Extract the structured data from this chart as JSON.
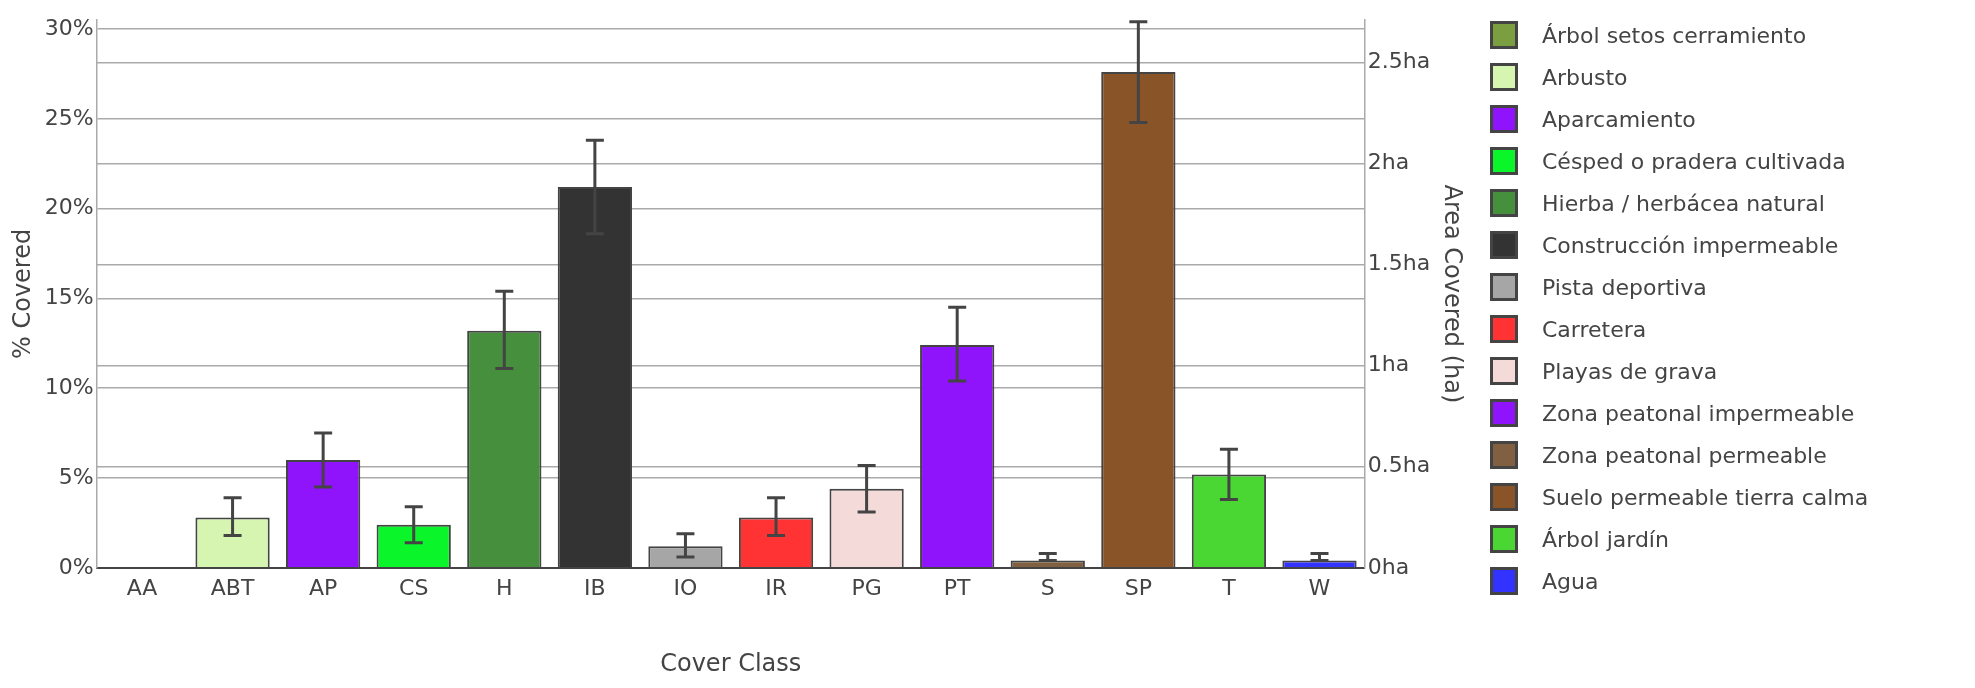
{
  "chart_data": {
    "type": "bar",
    "xlabel": "Cover Class",
    "ylabel": "% Covered",
    "y2label": "Area Covered (ha)",
    "categories": [
      "AA",
      "ABT",
      "AP",
      "CS",
      "H",
      "IB",
      "IO",
      "IR",
      "PG",
      "PT",
      "S",
      "SP",
      "T",
      "W"
    ],
    "ylim": [
      0,
      30.5
    ],
    "yticks": [
      {
        "value": 0,
        "label": "0%"
      },
      {
        "value": 5,
        "label": "5%"
      },
      {
        "value": 10,
        "label": "10%"
      },
      {
        "value": 15,
        "label": "15%"
      },
      {
        "value": 20,
        "label": "20%"
      },
      {
        "value": 25,
        "label": "25%"
      },
      {
        "value": 30,
        "label": "30%"
      }
    ],
    "y2lim": [
      0,
      2.71
    ],
    "y2ticks": [
      {
        "value": 0,
        "label": "0ha"
      },
      {
        "value": 0.5,
        "label": "0.5ha"
      },
      {
        "value": 1,
        "label": "1ha"
      },
      {
        "value": 1.5,
        "label": "1.5ha"
      },
      {
        "value": 2,
        "label": "2ha"
      },
      {
        "value": 2.5,
        "label": "2.5ha"
      }
    ],
    "grid": "y",
    "legend": "right",
    "series": [
      {
        "name": "Árbol setos cerramiento",
        "color": "#7a9e40",
        "values": [
          0.05,
          null,
          null,
          null,
          null,
          null,
          null,
          null,
          null,
          null,
          null,
          null,
          null,
          null
        ]
      },
      {
        "name": "Arbusto",
        "color": "#d5f5b0",
        "values": [
          null,
          2.8,
          null,
          null,
          null,
          null,
          null,
          null,
          null,
          null,
          null,
          null,
          null,
          null
        ],
        "errors": [
          null,
          [
            1.8,
            3.9
          ],
          null,
          null,
          null,
          null,
          null,
          null,
          null,
          null,
          null,
          null,
          null,
          null
        ]
      },
      {
        "name": "Aparcamiento",
        "color": "#8f14fc",
        "values": [
          null,
          null,
          6.0,
          null,
          null,
          null,
          null,
          null,
          null,
          null,
          null,
          null,
          null,
          null
        ],
        "errors": [
          null,
          null,
          [
            4.5,
            7.5
          ],
          null,
          null,
          null,
          null,
          null,
          null,
          null,
          null,
          null,
          null,
          null
        ]
      },
      {
        "name": "Césped o pradera cultivada",
        "color": "#0af52a",
        "values": [
          null,
          null,
          null,
          2.4,
          null,
          null,
          null,
          null,
          null,
          null,
          null,
          null,
          null,
          null
        ],
        "errors": [
          null,
          null,
          null,
          [
            1.4,
            3.4
          ],
          null,
          null,
          null,
          null,
          null,
          null,
          null,
          null,
          null,
          null
        ]
      },
      {
        "name": "Hierba / herbácea natural",
        "color": "#468f3c",
        "values": [
          null,
          null,
          null,
          null,
          13.2,
          null,
          null,
          null,
          null,
          null,
          null,
          null,
          null,
          null
        ],
        "errors": [
          null,
          null,
          null,
          null,
          [
            11.1,
            15.4
          ],
          null,
          null,
          null,
          null,
          null,
          null,
          null,
          null,
          null
        ]
      },
      {
        "name": "Construcción impermeable",
        "color": "#333333",
        "values": [
          null,
          null,
          null,
          null,
          null,
          21.2,
          null,
          null,
          null,
          null,
          null,
          null,
          null,
          null
        ],
        "errors": [
          null,
          null,
          null,
          null,
          null,
          [
            18.6,
            23.8
          ],
          null,
          null,
          null,
          null,
          null,
          null,
          null,
          null
        ]
      },
      {
        "name": "Pista deportiva",
        "color": "#a6a6a6",
        "values": [
          null,
          null,
          null,
          null,
          null,
          null,
          1.2,
          null,
          null,
          null,
          null,
          null,
          null,
          null
        ],
        "errors": [
          null,
          null,
          null,
          null,
          null,
          null,
          [
            0.6,
            1.9
          ],
          null,
          null,
          null,
          null,
          null,
          null,
          null
        ]
      },
      {
        "name": "Carretera",
        "color": "#ff3333",
        "values": [
          null,
          null,
          null,
          null,
          null,
          null,
          null,
          2.8,
          null,
          null,
          null,
          null,
          null,
          null
        ],
        "errors": [
          null,
          null,
          null,
          null,
          null,
          null,
          null,
          [
            1.8,
            3.9
          ],
          null,
          null,
          null,
          null,
          null,
          null
        ]
      },
      {
        "name": "Playas de grava",
        "color": "#f5dada",
        "values": [
          null,
          null,
          null,
          null,
          null,
          null,
          null,
          null,
          4.4,
          null,
          null,
          null,
          null,
          null
        ],
        "errors": [
          null,
          null,
          null,
          null,
          null,
          null,
          null,
          null,
          [
            3.1,
            5.7
          ],
          null,
          null,
          null,
          null,
          null
        ]
      },
      {
        "name": "Zona peatonal impermeable",
        "color": "#8f14fc",
        "values": [
          null,
          null,
          null,
          null,
          null,
          null,
          null,
          null,
          null,
          12.4,
          null,
          null,
          null,
          null
        ],
        "errors": [
          null,
          null,
          null,
          null,
          null,
          null,
          null,
          null,
          null,
          [
            10.4,
            14.5
          ],
          null,
          null,
          null,
          null
        ]
      },
      {
        "name": "Zona peatonal permeable",
        "color": "#806040",
        "values": [
          null,
          null,
          null,
          null,
          null,
          null,
          null,
          null,
          null,
          null,
          0.4,
          null,
          null,
          null
        ],
        "errors": [
          null,
          null,
          null,
          null,
          null,
          null,
          null,
          null,
          null,
          null,
          [
            0.4,
            0.8
          ],
          null,
          null,
          null
        ]
      },
      {
        "name": "Suelo permeable tierra calma",
        "color": "#8a5429",
        "values": [
          null,
          null,
          null,
          null,
          null,
          null,
          null,
          null,
          null,
          null,
          null,
          27.6,
          null,
          null
        ],
        "errors": [
          null,
          null,
          null,
          null,
          null,
          null,
          null,
          null,
          null,
          null,
          null,
          [
            24.8,
            30.4
          ],
          null,
          null
        ]
      },
      {
        "name": "Árbol jardín",
        "color": "#4ad633",
        "values": [
          null,
          null,
          null,
          null,
          null,
          null,
          null,
          null,
          null,
          null,
          null,
          null,
          5.2,
          null
        ],
        "errors": [
          null,
          null,
          null,
          null,
          null,
          null,
          null,
          null,
          null,
          null,
          null,
          null,
          [
            3.8,
            6.6
          ],
          null
        ]
      },
      {
        "name": "Agua",
        "color": "#3333ff",
        "values": [
          null,
          null,
          null,
          null,
          null,
          null,
          null,
          null,
          null,
          null,
          null,
          null,
          null,
          0.4
        ],
        "errors": [
          null,
          null,
          null,
          null,
          null,
          null,
          null,
          null,
          null,
          null,
          null,
          null,
          null,
          [
            0.4,
            0.8
          ]
        ]
      }
    ]
  }
}
